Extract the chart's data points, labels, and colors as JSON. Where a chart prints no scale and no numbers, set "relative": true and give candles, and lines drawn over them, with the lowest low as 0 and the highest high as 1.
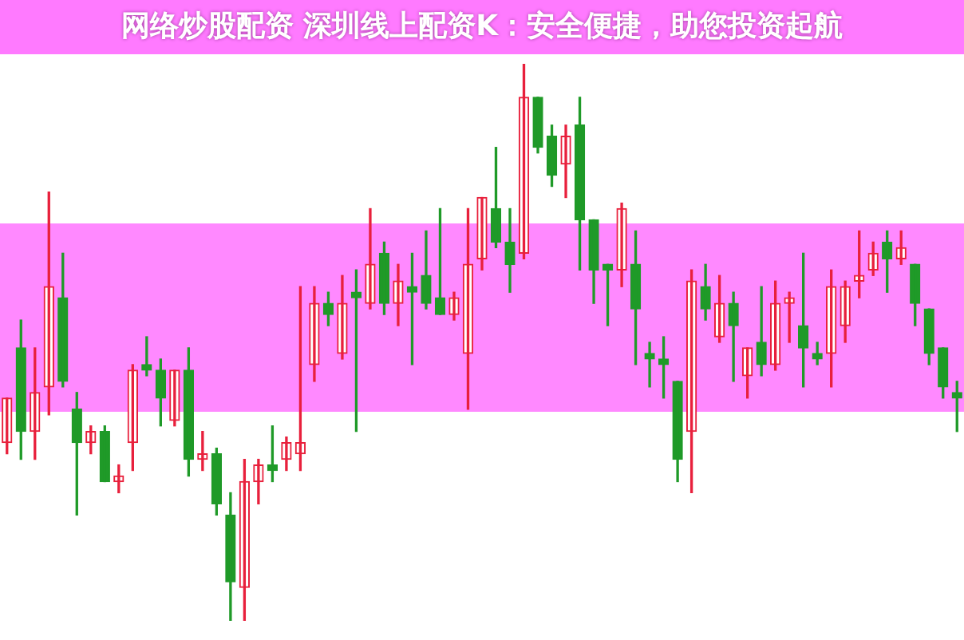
{
  "chart_data": {
    "type": "candlestick",
    "title": "网络炒股配资 深圳线上配资K：安全便捷，助您投资起航",
    "relative": true,
    "categories": [
      null,
      null,
      null,
      null,
      null,
      null,
      null,
      null,
      null,
      null,
      null,
      null,
      null,
      null,
      null,
      null,
      null,
      null,
      null,
      null,
      null,
      null,
      null,
      null,
      null,
      null,
      null,
      null,
      null,
      null,
      null,
      null,
      null,
      null,
      null,
      null,
      null,
      null,
      null,
      null,
      null,
      null,
      null,
      null,
      null,
      null,
      null,
      null,
      null,
      null,
      null,
      null,
      null,
      null,
      null,
      null,
      null,
      null,
      null,
      null,
      null,
      null,
      null,
      null,
      null,
      null,
      null,
      null,
      null
    ],
    "ohlc": [
      [
        0.32,
        0.4,
        0.3,
        0.4
      ],
      [
        0.49,
        0.54,
        0.29,
        0.34
      ],
      [
        0.34,
        0.49,
        0.29,
        0.41
      ],
      [
        0.42,
        0.77,
        0.37,
        0.6
      ],
      [
        0.58,
        0.66,
        0.42,
        0.43
      ],
      [
        0.38,
        0.41,
        0.19,
        0.32
      ],
      [
        0.32,
        0.35,
        0.3,
        0.34
      ],
      [
        0.34,
        0.35,
        0.25,
        0.25
      ],
      [
        0.25,
        0.28,
        0.23,
        0.26
      ],
      [
        0.32,
        0.46,
        0.27,
        0.45
      ],
      [
        0.46,
        0.51,
        0.44,
        0.45
      ],
      [
        0.45,
        0.47,
        0.35,
        0.4
      ],
      [
        0.36,
        0.45,
        0.35,
        0.45
      ],
      [
        0.45,
        0.49,
        0.26,
        0.29
      ],
      [
        0.29,
        0.34,
        0.27,
        0.3
      ],
      [
        0.3,
        0.31,
        0.19,
        0.21
      ],
      [
        0.19,
        0.23,
        0,
        0.07
      ],
      [
        0.06,
        0.29,
        0,
        0.25
      ],
      [
        0.25,
        0.29,
        0.21,
        0.28
      ],
      [
        0.28,
        0.35,
        0.25,
        0.27
      ],
      [
        0.29,
        0.33,
        0.27,
        0.32
      ],
      [
        0.3,
        0.6,
        0.27,
        0.32
      ],
      [
        0.46,
        0.6,
        0.43,
        0.57
      ],
      [
        0.57,
        0.59,
        0.53,
        0.55
      ],
      [
        0.48,
        0.62,
        0.47,
        0.57
      ],
      [
        0.59,
        0.63,
        0.34,
        0.58
      ],
      [
        0.57,
        0.74,
        0.56,
        0.64
      ],
      [
        0.66,
        0.68,
        0.55,
        0.57
      ],
      [
        0.57,
        0.64,
        0.53,
        0.61
      ],
      [
        0.6,
        0.66,
        0.46,
        0.59
      ],
      [
        0.62,
        0.7,
        0.56,
        0.57
      ],
      [
        0.58,
        0.74,
        0.55,
        0.55
      ],
      [
        0.55,
        0.59,
        0.54,
        0.58
      ],
      [
        0.48,
        0.74,
        0.38,
        0.64
      ],
      [
        0.65,
        0.76,
        0.63,
        0.76
      ],
      [
        0.74,
        0.85,
        0.67,
        0.68
      ],
      [
        0.68,
        0.74,
        0.59,
        0.64
      ],
      [
        0.66,
        1,
        0.65,
        0.94
      ],
      [
        0.94,
        0.94,
        0.84,
        0.85
      ],
      [
        0.87,
        0.89,
        0.78,
        0.8
      ],
      [
        0.82,
        0.89,
        0.76,
        0.87
      ],
      [
        0.89,
        0.94,
        0.63,
        0.72
      ],
      [
        0.72,
        0.72,
        0.57,
        0.63
      ],
      [
        0.64,
        0.64,
        0.53,
        0.63
      ],
      [
        0.63,
        0.75,
        0.6,
        0.74
      ],
      [
        0.64,
        0.7,
        0.46,
        0.56
      ],
      [
        0.48,
        0.5,
        0.42,
        0.47
      ],
      [
        0.47,
        0.51,
        0.4,
        0.46
      ],
      [
        0.43,
        0.43,
        0.25,
        0.29
      ],
      [
        0.34,
        0.63,
        0.23,
        0.61
      ],
      [
        0.6,
        0.64,
        0.54,
        0.56
      ],
      [
        0.51,
        0.62,
        0.5,
        0.57
      ],
      [
        0.57,
        0.59,
        0.43,
        0.53
      ],
      [
        0.44,
        0.49,
        0.4,
        0.49
      ],
      [
        0.5,
        0.6,
        0.44,
        0.46
      ],
      [
        0.46,
        0.61,
        0.45,
        0.57
      ],
      [
        0.57,
        0.59,
        0.5,
        0.58
      ],
      [
        0.53,
        0.66,
        0.42,
        0.49
      ],
      [
        0.48,
        0.5,
        0.46,
        0.47
      ],
      [
        0.48,
        0.63,
        0.42,
        0.6
      ],
      [
        0.53,
        0.61,
        0.5,
        0.6
      ],
      [
        0.61,
        0.7,
        0.58,
        0.62
      ],
      [
        0.63,
        0.68,
        0.62,
        0.66
      ],
      [
        0.68,
        0.7,
        0.59,
        0.65
      ],
      [
        0.65,
        0.7,
        0.64,
        0.67
      ],
      [
        0.64,
        0.64,
        0.53,
        0.57
      ],
      [
        0.56,
        0.56,
        0.46,
        0.48
      ],
      [
        0.49,
        0.49,
        0.4,
        0.42
      ],
      [
        0.41,
        0.43,
        0.34,
        0.4
      ]
    ],
    "colors": [
      "#e8203c",
      "#1f9a28",
      "#e8203c",
      "#e8203c",
      "#1f9a28",
      "#1f9a28",
      "#e8203c",
      "#1f9a28",
      "#e8203c",
      "#e8203c",
      "#1f9a28",
      "#1f9a28",
      "#e8203c",
      "#1f9a28",
      "#e8203c",
      "#1f9a28",
      "#1f9a28",
      "#e8203c",
      "#e8203c",
      "#1f9a28",
      "#e8203c",
      "#e8203c",
      "#e8203c",
      "#1f9a28",
      "#e8203c",
      "#1f9a28",
      "#e8203c",
      "#1f9a28",
      "#e8203c",
      "#1f9a28",
      "#1f9a28",
      "#1f9a28",
      "#e8203c",
      "#e8203c",
      "#e8203c",
      "#1f9a28",
      "#1f9a28",
      "#e8203c",
      "#1f9a28",
      "#1f9a28",
      "#e8203c",
      "#1f9a28",
      "#1f9a28",
      "#1f9a28",
      "#e8203c",
      "#1f9a28",
      "#1f9a28",
      "#1f9a28",
      "#1f9a28",
      "#e8203c",
      "#1f9a28",
      "#e8203c",
      "#1f9a28",
      "#e8203c",
      "#1f9a28",
      "#e8203c",
      "#e8203c",
      "#1f9a28",
      "#1f9a28",
      "#e8203c",
      "#e8203c",
      "#e8203c",
      "#e8203c",
      "#1f9a28",
      "#e8203c",
      "#1f9a28",
      "#1f9a28",
      "#1f9a28",
      "#1f9a28"
    ]
  }
}
